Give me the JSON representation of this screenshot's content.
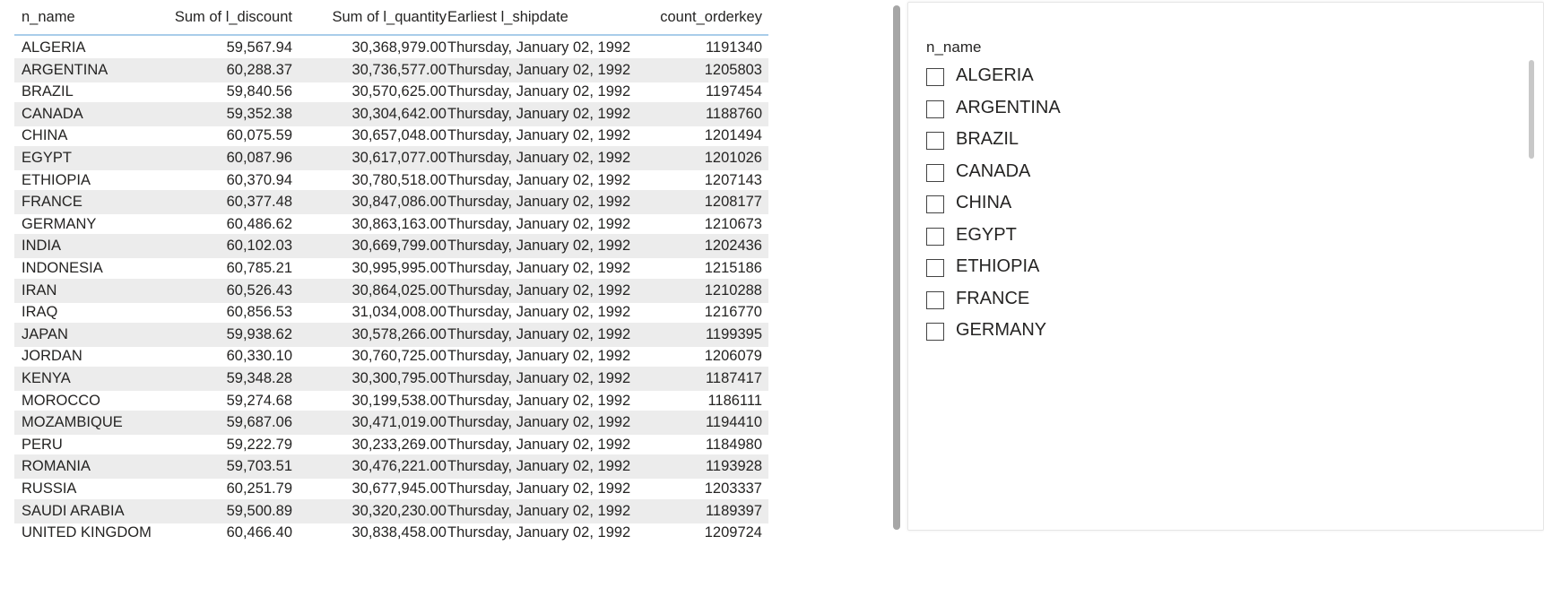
{
  "table": {
    "columns": [
      "n_name",
      "Sum of l_discount",
      "Sum of l_quantity",
      "Earliest l_shipdate",
      "count_orderkey"
    ],
    "rows": [
      [
        "ALGERIA",
        "59,567.94",
        "30,368,979.00",
        "Thursday, January 02, 1992",
        "1191340"
      ],
      [
        "ARGENTINA",
        "60,288.37",
        "30,736,577.00",
        "Thursday, January 02, 1992",
        "1205803"
      ],
      [
        "BRAZIL",
        "59,840.56",
        "30,570,625.00",
        "Thursday, January 02, 1992",
        "1197454"
      ],
      [
        "CANADA",
        "59,352.38",
        "30,304,642.00",
        "Thursday, January 02, 1992",
        "1188760"
      ],
      [
        "CHINA",
        "60,075.59",
        "30,657,048.00",
        "Thursday, January 02, 1992",
        "1201494"
      ],
      [
        "EGYPT",
        "60,087.96",
        "30,617,077.00",
        "Thursday, January 02, 1992",
        "1201026"
      ],
      [
        "ETHIOPIA",
        "60,370.94",
        "30,780,518.00",
        "Thursday, January 02, 1992",
        "1207143"
      ],
      [
        "FRANCE",
        "60,377.48",
        "30,847,086.00",
        "Thursday, January 02, 1992",
        "1208177"
      ],
      [
        "GERMANY",
        "60,486.62",
        "30,863,163.00",
        "Thursday, January 02, 1992",
        "1210673"
      ],
      [
        "INDIA",
        "60,102.03",
        "30,669,799.00",
        "Thursday, January 02, 1992",
        "1202436"
      ],
      [
        "INDONESIA",
        "60,785.21",
        "30,995,995.00",
        "Thursday, January 02, 1992",
        "1215186"
      ],
      [
        "IRAN",
        "60,526.43",
        "30,864,025.00",
        "Thursday, January 02, 1992",
        "1210288"
      ],
      [
        "IRAQ",
        "60,856.53",
        "31,034,008.00",
        "Thursday, January 02, 1992",
        "1216770"
      ],
      [
        "JAPAN",
        "59,938.62",
        "30,578,266.00",
        "Thursday, January 02, 1992",
        "1199395"
      ],
      [
        "JORDAN",
        "60,330.10",
        "30,760,725.00",
        "Thursday, January 02, 1992",
        "1206079"
      ],
      [
        "KENYA",
        "59,348.28",
        "30,300,795.00",
        "Thursday, January 02, 1992",
        "1187417"
      ],
      [
        "MOROCCO",
        "59,274.68",
        "30,199,538.00",
        "Thursday, January 02, 1992",
        "1186111"
      ],
      [
        "MOZAMBIQUE",
        "59,687.06",
        "30,471,019.00",
        "Thursday, January 02, 1992",
        "1194410"
      ],
      [
        "PERU",
        "59,222.79",
        "30,233,269.00",
        "Thursday, January 02, 1992",
        "1184980"
      ],
      [
        "ROMANIA",
        "59,703.51",
        "30,476,221.00",
        "Thursday, January 02, 1992",
        "1193928"
      ],
      [
        "RUSSIA",
        "60,251.79",
        "30,677,945.00",
        "Thursday, January 02, 1992",
        "1203337"
      ],
      [
        "SAUDI ARABIA",
        "59,500.89",
        "30,320,230.00",
        "Thursday, January 02, 1992",
        "1189397"
      ],
      [
        "UNITED KINGDOM",
        "60,466.40",
        "30,838,458.00",
        "Thursday, January 02, 1992",
        "1209724"
      ]
    ]
  },
  "slicer": {
    "title": "n_name",
    "items": [
      "ALGERIA",
      "ARGENTINA",
      "BRAZIL",
      "CANADA",
      "CHINA",
      "EGYPT",
      "ETHIOPIA",
      "FRANCE",
      "GERMANY"
    ]
  },
  "colors": {
    "header_underline": "#a9cdea",
    "alt_row": "#ececec",
    "scrollbar": "#a6a6a6"
  }
}
